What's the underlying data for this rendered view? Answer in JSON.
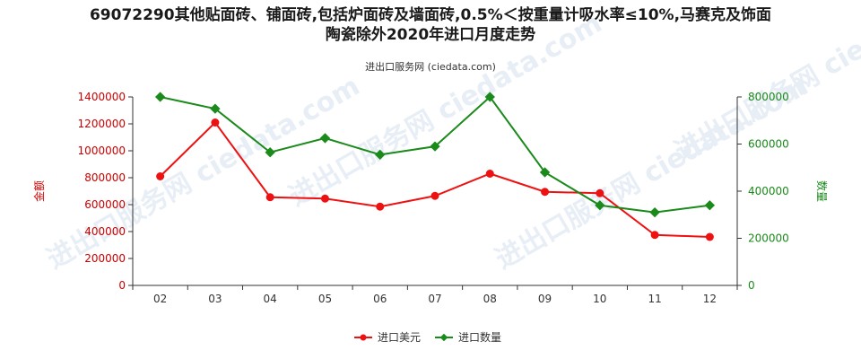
{
  "title_lines": [
    "69072290其他贴面砖、铺面砖,包括炉面砖及墙面砖,0.5%＜按重量计吸水率≤10%,马赛克及饰面",
    "陶瓷除外2020年进口月度走势"
  ],
  "subtitle": "进出口服务网 (ciedata.com)",
  "watermark": "进出口服务网 ciedata.com",
  "colors": {
    "amount": "#ee1111",
    "quantity": "#1a8a1a",
    "left_axis": "#cc0000",
    "right_axis": "#1a8a1a"
  },
  "chart_data": {
    "type": "line",
    "categories": [
      "02",
      "03",
      "04",
      "05",
      "06",
      "07",
      "08",
      "09",
      "10",
      "11",
      "12"
    ],
    "y_left": {
      "label": "金额",
      "lim": [
        0,
        1400000
      ],
      "ticks": [
        "0",
        "200000",
        "400000",
        "600000",
        "800000",
        "1000000",
        "1200000",
        "1400000"
      ]
    },
    "y_right": {
      "label": "数量",
      "lim": [
        0,
        800000
      ],
      "ticks": [
        "0",
        "200000",
        "400000",
        "600000",
        "800000"
      ]
    },
    "series": [
      {
        "name": "进口美元",
        "axis": "left",
        "values": [
          810000,
          1210000,
          655000,
          645000,
          585000,
          665000,
          830000,
          695000,
          685000,
          375000,
          360000
        ]
      },
      {
        "name": "进口数量",
        "axis": "right",
        "values": [
          800000,
          750000,
          565000,
          625000,
          555000,
          590000,
          800000,
          480000,
          340000,
          310000,
          340000
        ]
      }
    ],
    "legend_position": "bottom-center",
    "grid": false
  }
}
